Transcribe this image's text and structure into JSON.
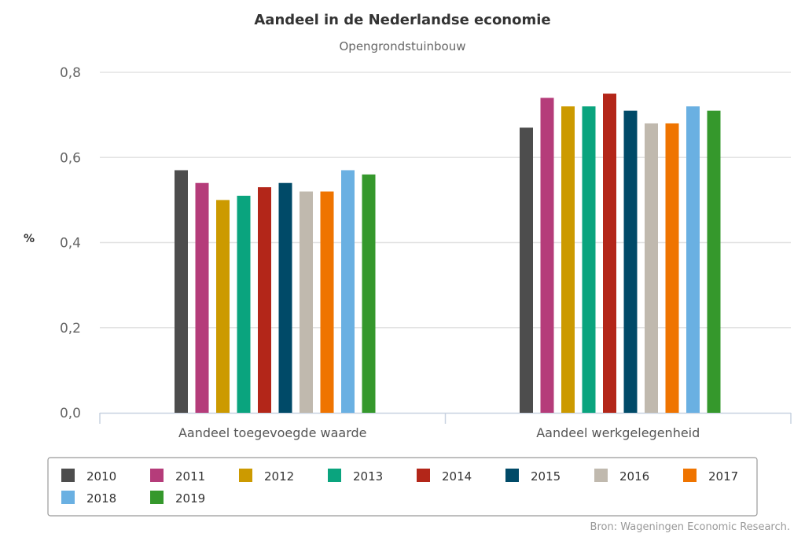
{
  "chart_data": {
    "type": "bar",
    "title": "Aandeel in de Nederlandse economie",
    "subtitle": "Opengrondstuinbouw",
    "ylabel": "%",
    "xlabel": "",
    "ylim": [
      0,
      0.8
    ],
    "yticks": [
      "0,0",
      "0,2",
      "0,4",
      "0,6",
      "0,8"
    ],
    "ytick_values": [
      0,
      0.2,
      0.4,
      0.6,
      0.8
    ],
    "grid": true,
    "legend_placement": "bottom",
    "categories": [
      "Aandeel toegevoegde waarde",
      "Aandeel werkgelegenheid"
    ],
    "series": [
      {
        "name": "2010",
        "color": "#4d4d4d",
        "values": [
          0.57,
          0.67
        ]
      },
      {
        "name": "2011",
        "color": "#b53c7a",
        "values": [
          0.54,
          0.74
        ]
      },
      {
        "name": "2012",
        "color": "#cc9a00",
        "values": [
          0.5,
          0.72
        ]
      },
      {
        "name": "2013",
        "color": "#0aa47e",
        "values": [
          0.51,
          0.72
        ]
      },
      {
        "name": "2014",
        "color": "#b32619",
        "values": [
          0.53,
          0.75
        ]
      },
      {
        "name": "2015",
        "color": "#004a68",
        "values": [
          0.54,
          0.71
        ]
      },
      {
        "name": "2016",
        "color": "#c0b9ae",
        "values": [
          0.52,
          0.68
        ]
      },
      {
        "name": "2017",
        "color": "#ef7400",
        "values": [
          0.52,
          0.68
        ]
      },
      {
        "name": "2018",
        "color": "#6ab0e2",
        "values": [
          0.57,
          0.72
        ]
      },
      {
        "name": "2019",
        "color": "#35982c",
        "values": [
          0.56,
          0.71
        ]
      }
    ],
    "source": "Bron: Wageningen Economic Research."
  }
}
